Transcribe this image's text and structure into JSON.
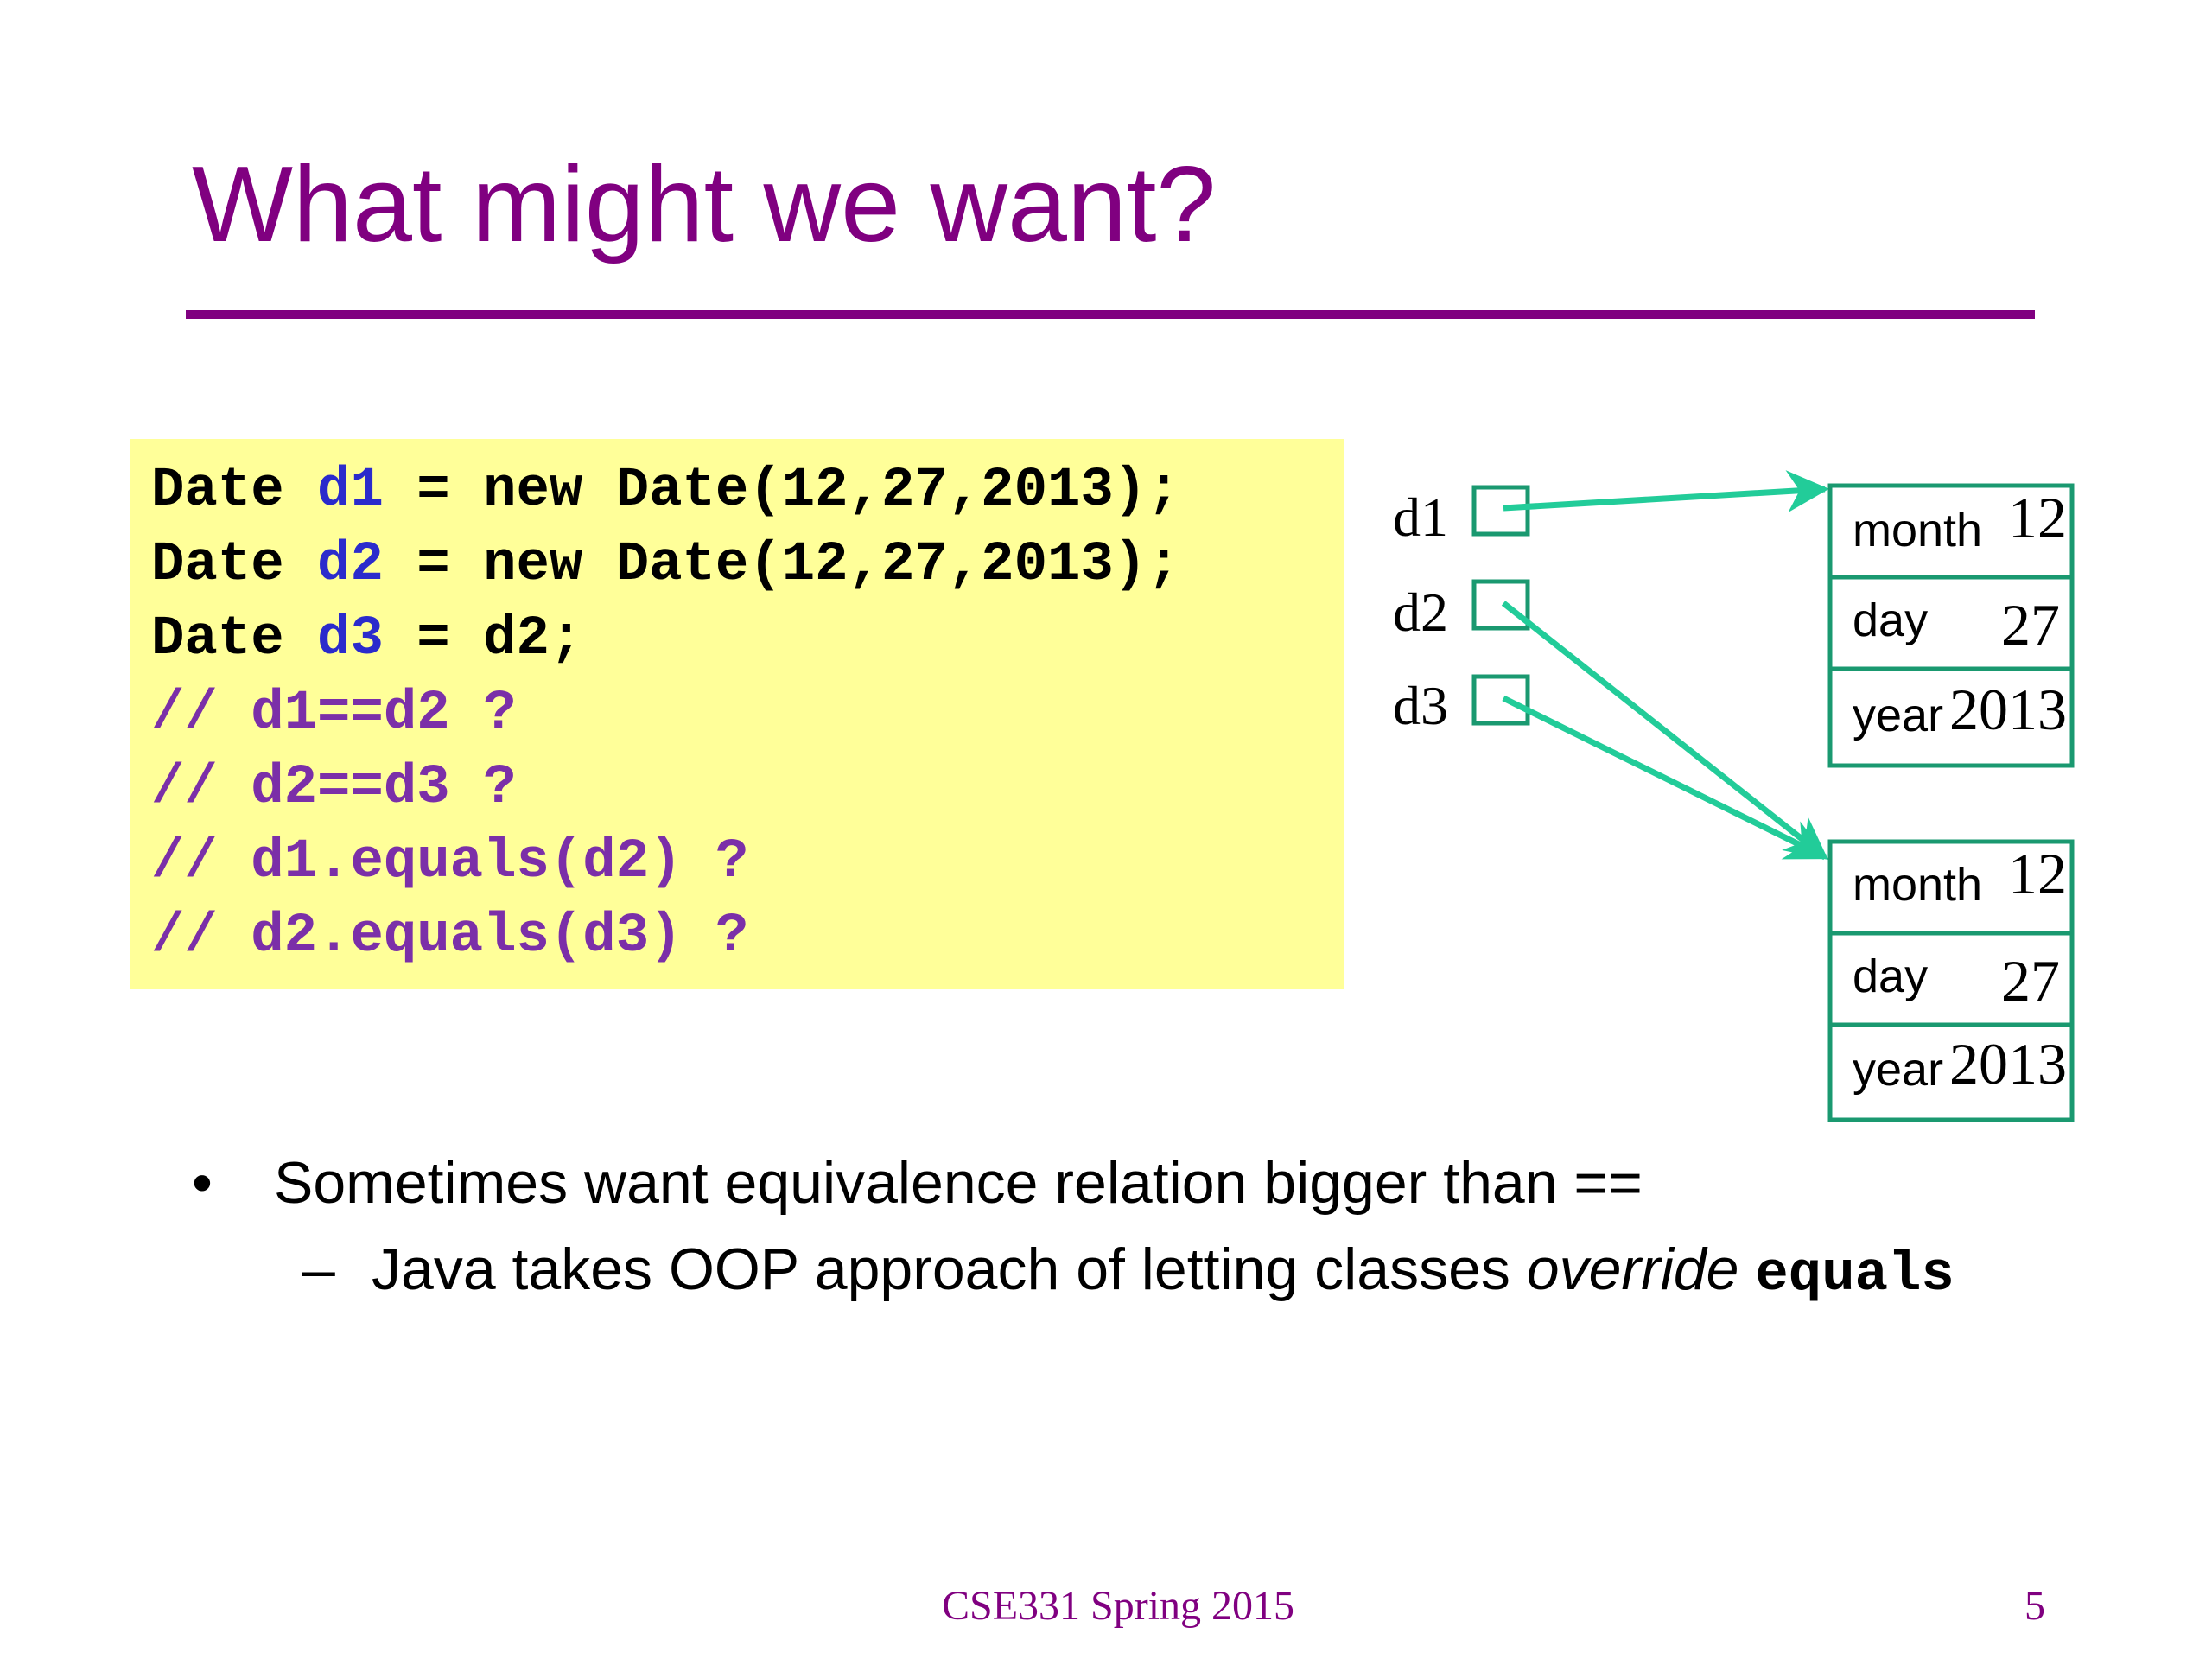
{
  "title": "What might we want?",
  "code": {
    "lines": [
      [
        {
          "t": "Date ",
          "c": "black"
        },
        {
          "t": "d1",
          "c": "blue"
        },
        {
          "t": " = new Date(12,27,2013);",
          "c": "black"
        }
      ],
      [
        {
          "t": "Date ",
          "c": "black"
        },
        {
          "t": "d2",
          "c": "blue"
        },
        {
          "t": " = new Date(12,27,2013);",
          "c": "black"
        }
      ],
      [
        {
          "t": "Date ",
          "c": "black"
        },
        {
          "t": "d3",
          "c": "blue"
        },
        {
          "t": " = d2;",
          "c": "black"
        }
      ],
      [
        {
          "t": "// d1==d2 ?",
          "c": "purple"
        }
      ],
      [
        {
          "t": "// d2==d3 ?",
          "c": "purple"
        }
      ],
      [
        {
          "t": "// d1.equals(d2) ?",
          "c": "purple"
        }
      ],
      [
        {
          "t": "// d2.equals(d3) ?",
          "c": "purple"
        }
      ]
    ]
  },
  "diagram": {
    "variables": [
      "d1",
      "d2",
      "d3"
    ],
    "objects": [
      {
        "month_label": "month",
        "month": "12",
        "day_label": "day",
        "day": "27",
        "year_label": "year",
        "year": "2013"
      },
      {
        "month_label": "month",
        "month": "12",
        "day_label": "day",
        "day": "27",
        "year_label": "year",
        "year": "2013"
      }
    ],
    "box_color": "#1a9970",
    "arrow_color": "#22cc99"
  },
  "bullets": {
    "level1": "Sometimes want equivalence relation bigger than ==",
    "level1_marker": "•",
    "level2_marker": "–",
    "level2_before": "Java takes OOP approach of letting classes ",
    "level2_italic": "override",
    "level2_code": "equals"
  },
  "footer": {
    "course": "CSE331 Spring 2015",
    "page": "5"
  },
  "colors": {
    "title": "#800080",
    "code_background": "#ffff99",
    "code_variable": "#2b2bcc",
    "code_comment": "#7b2fa8"
  }
}
